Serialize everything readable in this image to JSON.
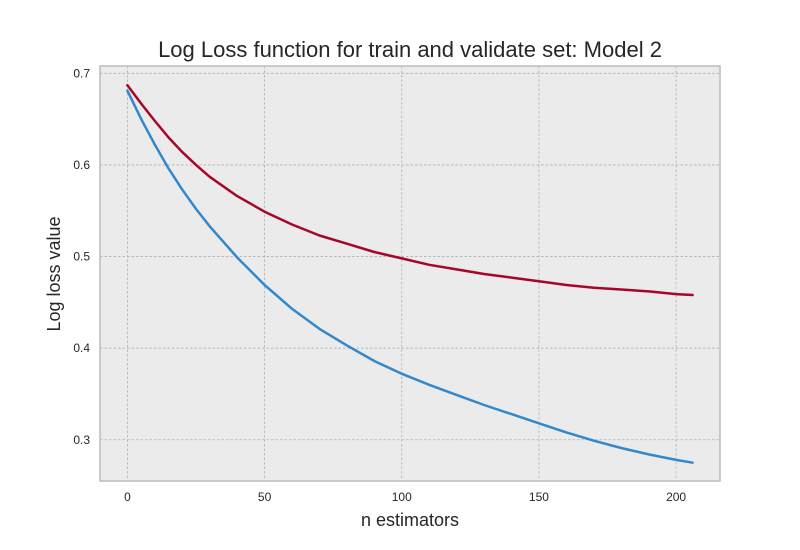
{
  "chart_data": {
    "type": "line",
    "title": "Log Loss function for train and validate set: Model 2",
    "xlabel": "n estimators",
    "ylabel": "Log loss value",
    "xlim": [
      -10,
      216
    ],
    "ylim": [
      0.255,
      0.708
    ],
    "x_ticks": [
      0,
      50,
      100,
      150,
      200
    ],
    "x_tick_labels": [
      "0",
      "50",
      "100",
      "150",
      "200"
    ],
    "y_ticks": [
      0.3,
      0.4,
      0.5,
      0.6,
      0.7
    ],
    "y_tick_labels": [
      "0.3",
      "0.4",
      "0.5",
      "0.6",
      "0.7"
    ],
    "grid": true,
    "background": "#ebebeb",
    "x": [
      0,
      5,
      10,
      15,
      20,
      25,
      30,
      40,
      50,
      60,
      70,
      80,
      90,
      100,
      110,
      120,
      130,
      140,
      150,
      160,
      170,
      180,
      190,
      200,
      206
    ],
    "series": [
      {
        "color": "#3388cc",
        "values": [
          0.681,
          0.65,
          0.622,
          0.596,
          0.573,
          0.552,
          0.533,
          0.499,
          0.469,
          0.443,
          0.421,
          0.403,
          0.386,
          0.372,
          0.36,
          0.349,
          0.338,
          0.328,
          0.318,
          0.308,
          0.299,
          0.291,
          0.284,
          0.278,
          0.275
        ]
      },
      {
        "color": "#a60628",
        "values": [
          0.687,
          0.667,
          0.648,
          0.63,
          0.614,
          0.6,
          0.587,
          0.566,
          0.549,
          0.535,
          0.523,
          0.514,
          0.505,
          0.498,
          0.491,
          0.486,
          0.481,
          0.477,
          0.473,
          0.469,
          0.466,
          0.464,
          0.462,
          0.459,
          0.458
        ]
      }
    ]
  }
}
